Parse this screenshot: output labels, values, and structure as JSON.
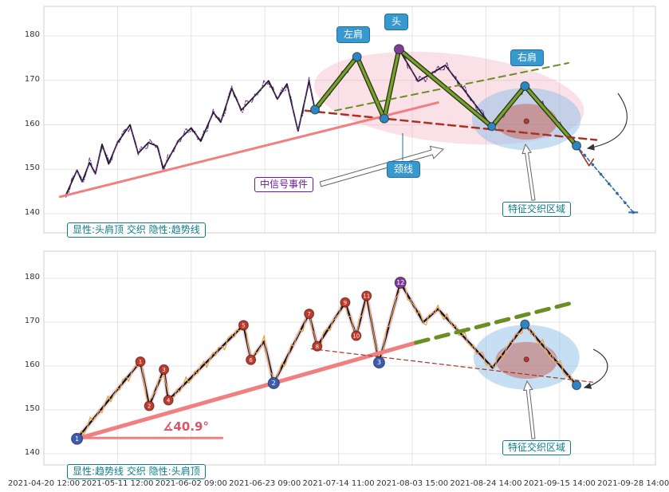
{
  "axes": {
    "x_tick_labels": [
      "2021-04-20 12:00",
      "2021-05-11 12:00",
      "2021-06-02 09:00",
      "2021-06-23 09:00",
      "2021-07-14 11:00",
      "2021-08-03 15:00",
      "2021-08-24 14:00",
      "2021-09-15 14:00",
      "2021-09-28 14:00"
    ],
    "y_tick_labels": [
      140,
      150,
      160,
      170,
      180
    ]
  },
  "annotations": {
    "left_shoulder": "左肩",
    "head": "头",
    "right_shoulder": "右肩",
    "neckline": "颈线",
    "mid_signal_event": "中信号事件",
    "feature_zone_top": "特征交织区域",
    "feature_zone_bottom": "特征交织区域",
    "angle_label": "∡40.9°",
    "legend_top": "显性:头肩顶 交织 隐性:趋势线",
    "legend_bottom": "显性:趋势线 交织 隐性:头肩顶"
  },
  "colors": {
    "price_top": "#6a2c93",
    "price_bottom": "#e8a33c",
    "zigzag": "#1c1c1c",
    "pattern_green": "#77a232",
    "neckline_red": "#a93226",
    "trend_pink": "#f08080",
    "trend_green": "#6b8e23",
    "forecast_blue": "#2e6da4",
    "tag_blue": "#3899cf",
    "teal": "#0e7c86",
    "purple": "#6a1b9a"
  },
  "chart_data": [
    {
      "type": "line",
      "panel": "top",
      "legend": "显性:头肩顶 交织 隐性:趋势线",
      "x_unit": "tick-index of shared date axis",
      "ylim": [
        137,
        184
      ],
      "yticks": [
        140,
        150,
        160,
        170,
        180
      ],
      "series": [
        {
          "name": "zigzag",
          "color": "#1c1c1c",
          "width": 1.8,
          "points": [
            [
              0.3,
              144.2
            ],
            [
              0.45,
              149.8
            ],
            [
              0.52,
              147.2
            ],
            [
              0.62,
              151.5
            ],
            [
              0.7,
              149.0
            ],
            [
              0.79,
              155.6
            ],
            [
              0.88,
              151.2
            ],
            [
              1.0,
              156.0
            ],
            [
              1.17,
              160.0
            ],
            [
              1.28,
              153.6
            ],
            [
              1.42,
              156.0
            ],
            [
              1.54,
              155.2
            ],
            [
              1.62,
              150.2
            ],
            [
              1.83,
              156.5
            ],
            [
              2.0,
              159.3
            ],
            [
              2.13,
              156.3
            ],
            [
              2.3,
              162.8
            ],
            [
              2.4,
              160.6
            ],
            [
              2.55,
              168.2
            ],
            [
              2.68,
              163.3
            ],
            [
              2.88,
              166.8
            ],
            [
              3.05,
              169.9
            ],
            [
              3.17,
              165.8
            ],
            [
              3.3,
              169.2
            ],
            [
              3.45,
              158.6
            ],
            [
              3.6,
              169.8
            ],
            [
              3.68,
              163.4
            ],
            [
              4.25,
              175.3
            ],
            [
              4.62,
              161.4
            ],
            [
              4.82,
              177.0
            ],
            [
              5.08,
              169.8
            ],
            [
              5.45,
              173.4
            ],
            [
              6.08,
              159.6
            ],
            [
              6.53,
              168.7
            ],
            [
              7.23,
              155.3
            ]
          ]
        },
        {
          "name": "price",
          "base": "zigzag",
          "wiggle": 1.1,
          "color": "#6a2c93",
          "width": 1.1,
          "dash": "5 2 1.5 2"
        },
        {
          "name": "head-shoulders-pattern",
          "color": "#77a232",
          "width": 3.2,
          "outline": "#2f3b10",
          "outline_width": 6,
          "points": [
            [
              3.68,
              163.4
            ],
            [
              4.25,
              175.3
            ],
            [
              4.62,
              161.4
            ],
            [
              4.82,
              177.0
            ],
            [
              6.08,
              159.6
            ],
            [
              6.53,
              168.7
            ],
            [
              7.23,
              155.3
            ]
          ]
        },
        {
          "name": "neckline",
          "color": "#a93226",
          "width": 2.5,
          "dash": "9 6",
          "points": [
            [
              3.55,
              163.2
            ],
            [
              7.5,
              156.6
            ]
          ]
        },
        {
          "name": "trendline",
          "color": "#f08080",
          "width": 3,
          "points": [
            [
              0.22,
              143.8
            ],
            [
              5.35,
              165.0
            ]
          ]
        },
        {
          "name": "trendline-extension",
          "color": "#6b8e23",
          "width": 2,
          "dash": "8 6",
          "points": [
            [
              3.95,
              163.2
            ],
            [
              7.12,
              173.9
            ]
          ]
        },
        {
          "name": "drop-tail",
          "color": "#a93226",
          "width": 1.6,
          "points": [
            [
              7.23,
              155.3
            ],
            [
              7.4,
              150.8
            ],
            [
              7.46,
              152.3
            ]
          ]
        },
        {
          "name": "forecast",
          "color": "#2e6da4",
          "width": 1.6,
          "dash": "4 3",
          "dot_markers": true,
          "points": [
            [
              7.23,
              155.3
            ],
            [
              8.0,
              140.3
            ]
          ]
        }
      ],
      "markers": [
        {
          "t": 3.68,
          "v": 163.4,
          "color": "#2e86c1",
          "r": 5.5
        },
        {
          "t": 4.25,
          "v": 175.3,
          "color": "#2e86c1",
          "r": 5.5
        },
        {
          "t": 4.62,
          "v": 161.4,
          "color": "#2e86c1",
          "r": 5.5
        },
        {
          "t": 4.82,
          "v": 177.0,
          "color": "#7d3c98",
          "r": 6
        },
        {
          "t": 6.08,
          "v": 159.6,
          "color": "#2e86c1",
          "r": 5
        },
        {
          "t": 6.53,
          "v": 168.7,
          "color": "#2e86c1",
          "r": 5.5
        },
        {
          "t": 7.23,
          "v": 155.3,
          "color": "#2e86c1",
          "r": 5.5
        },
        {
          "t": 6.55,
          "v": 160.8,
          "color": "#c0392b",
          "r": 3
        }
      ],
      "ellipses": [
        {
          "ct": 5.5,
          "cv": 166.0,
          "rt": 1.84,
          "rv": 10.0,
          "rot": 6,
          "fill": "#efa8bb",
          "opacity": 0.35
        },
        {
          "ct": 6.55,
          "cv": 161.3,
          "rt": 0.74,
          "rv": 7.0,
          "rot": 0,
          "fill": "#8fbfe8",
          "opacity": 0.5
        },
        {
          "ct": 6.55,
          "cv": 160.7,
          "rt": 0.42,
          "rv": 4.0,
          "rot": 0,
          "fill": "#c65b4e",
          "opacity": 0.5
        }
      ]
    },
    {
      "type": "line",
      "panel": "bottom",
      "legend": "显性:趋势线 交织 隐性:头肩顶",
      "trendline_angle_deg": 40.9,
      "ylim": [
        137,
        184
      ],
      "yticks": [
        140,
        150,
        160,
        170,
        180
      ],
      "series": [
        {
          "name": "zigzag",
          "color": "#141414",
          "width": 2.4,
          "halo": "#d9b8e6",
          "halo_width": 6,
          "points": [
            [
              0.45,
              143.4
            ],
            [
              1.31,
              161.0
            ],
            [
              1.43,
              150.9
            ],
            [
              1.63,
              159.2
            ],
            [
              1.69,
              152.2
            ],
            [
              2.71,
              169.3
            ],
            [
              2.81,
              161.4
            ],
            [
              2.99,
              165.6
            ],
            [
              3.12,
              156.1
            ],
            [
              3.6,
              171.9
            ],
            [
              3.71,
              164.5
            ],
            [
              4.09,
              174.5
            ],
            [
              4.24,
              166.9
            ],
            [
              4.38,
              176.0
            ],
            [
              4.55,
              160.8
            ],
            [
              4.84,
              179.0
            ],
            [
              5.15,
              170.0
            ],
            [
              5.35,
              173.0
            ],
            [
              6.09,
              159.6
            ],
            [
              6.53,
              169.5
            ],
            [
              7.23,
              155.6
            ]
          ]
        },
        {
          "name": "price",
          "base": "zigzag",
          "wiggle": 1.25,
          "color": "#e8a33c",
          "width": 1.2
        },
        {
          "name": "trendline",
          "color": "#f08080",
          "width": 5,
          "points": [
            [
              0.49,
              143.6
            ],
            [
              5.05,
              165.3
            ]
          ]
        },
        {
          "name": "angle-baseline",
          "color": "#f08080",
          "width": 3,
          "points": [
            [
              0.5,
              143.6
            ],
            [
              2.42,
              143.6
            ]
          ]
        },
        {
          "name": "trendline-extension",
          "color": "#6b8e23",
          "width": 5,
          "dash": "16 10",
          "points": [
            [
              5.05,
              165.3
            ],
            [
              7.15,
              174.3
            ]
          ]
        },
        {
          "name": "hidden-neckline",
          "color": "#a93226",
          "width": 1.2,
          "dash": "5 4",
          "points": [
            [
              3.63,
              163.9
            ],
            [
              7.45,
              156.3
            ]
          ]
        }
      ],
      "markers": [
        {
          "t": 0.45,
          "v": 143.4,
          "color": "#3b5bb5",
          "r": 7,
          "label": "1"
        },
        {
          "t": 3.12,
          "v": 156.1,
          "color": "#3b5bb5",
          "r": 7,
          "label": "2"
        },
        {
          "t": 4.55,
          "v": 160.8,
          "color": "#3b5bb5",
          "r": 7,
          "label": "3"
        },
        {
          "t": 1.31,
          "v": 161.0,
          "color": "#c0392b",
          "r": 6,
          "label": "1"
        },
        {
          "t": 1.43,
          "v": 150.9,
          "color": "#c0392b",
          "r": 6,
          "label": "2"
        },
        {
          "t": 1.63,
          "v": 159.2,
          "color": "#c0392b",
          "r": 6,
          "label": "3"
        },
        {
          "t": 1.69,
          "v": 152.2,
          "color": "#c0392b",
          "r": 6,
          "label": "4"
        },
        {
          "t": 2.71,
          "v": 169.3,
          "color": "#c0392b",
          "r": 6,
          "label": "5"
        },
        {
          "t": 2.81,
          "v": 161.4,
          "color": "#c0392b",
          "r": 6,
          "label": "6"
        },
        {
          "t": 3.6,
          "v": 171.9,
          "color": "#c0392b",
          "r": 6,
          "label": "7"
        },
        {
          "t": 3.71,
          "v": 164.5,
          "color": "#c0392b",
          "r": 6,
          "label": "8"
        },
        {
          "t": 4.09,
          "v": 174.5,
          "color": "#c0392b",
          "r": 6,
          "label": "9"
        },
        {
          "t": 4.24,
          "v": 166.9,
          "color": "#c0392b",
          "r": 6,
          "label": "10"
        },
        {
          "t": 4.38,
          "v": 176.0,
          "color": "#c0392b",
          "r": 6,
          "label": "11"
        },
        {
          "t": 4.84,
          "v": 179.0,
          "color": "#7d3c98",
          "r": 7,
          "label": "12"
        },
        {
          "t": 6.53,
          "v": 169.5,
          "color": "#2e86c1",
          "r": 5.5
        },
        {
          "t": 7.23,
          "v": 155.6,
          "color": "#2e86c1",
          "r": 5.5
        },
        {
          "t": 6.55,
          "v": 161.5,
          "color": "#c0392b",
          "r": 3
        }
      ],
      "ellipses": [
        {
          "ct": 6.55,
          "cv": 162.0,
          "rt": 0.72,
          "rv": 7.4,
          "rot": 0,
          "fill": "#8fbfe8",
          "opacity": 0.5
        },
        {
          "ct": 6.55,
          "cv": 161.3,
          "rt": 0.42,
          "rv": 4.2,
          "rot": 0,
          "fill": "#c65b4e",
          "opacity": 0.5
        }
      ]
    }
  ]
}
